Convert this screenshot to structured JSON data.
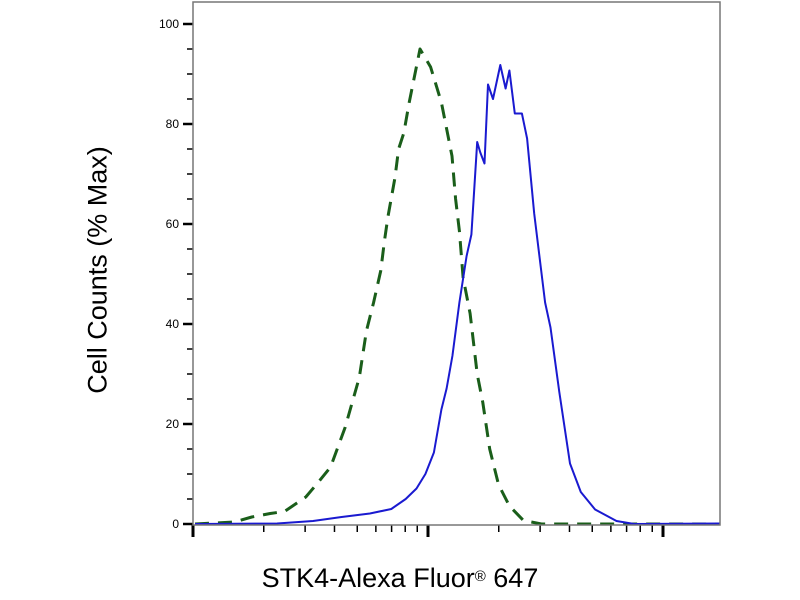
{
  "chart_data": {
    "type": "line",
    "title": "",
    "xlabel": "STK4-Alexa Fluor",
    "xlabel_mark": "®",
    "xlabel_suffix": " 647",
    "ylabel": "Cell Counts (% Max)",
    "x_scale": "log",
    "xlim": [
      1,
      175
    ],
    "ylim": [
      0,
      100
    ],
    "yticks": [
      0,
      20,
      40,
      60,
      80,
      100
    ],
    "x_tick_labels_shown": false,
    "grid": false,
    "legend": "none",
    "series": [
      {
        "style": "dashed",
        "color": "#1a5e1a",
        "x": [
          1.02,
          1.5,
          1.78,
          2.13,
          2.45,
          3.02,
          3.35,
          3.85,
          4.44,
          5.1,
          5.47,
          5.87,
          6.3,
          6.52,
          6.75,
          7.24,
          7.5,
          7.89,
          8.32,
          9.25,
          10.26,
          11.4,
          12.65,
          13.1,
          13.6,
          14.1,
          15.1,
          16.2,
          17.1,
          18.3,
          19.95,
          22.2,
          25.5,
          30.4,
          53.2,
          175
        ],
        "y": [
          0,
          0.4,
          1.4,
          2.1,
          2.5,
          5.4,
          7.9,
          11.4,
          19.3,
          29.3,
          38.6,
          44.3,
          50.7,
          56.4,
          61.4,
          69.3,
          75,
          78.2,
          84.3,
          95,
          91.4,
          84.3,
          73.6,
          65,
          58.6,
          49.3,
          42.1,
          30,
          24.3,
          15,
          7.9,
          3.6,
          0.7,
          0,
          0,
          0
        ]
      },
      {
        "style": "solid",
        "color": "#1a1ad0",
        "x": [
          1.02,
          2.28,
          3.24,
          4.29,
          5.66,
          6.98,
          8.04,
          8.93,
          9.75,
          10.6,
          11.4,
          12.0,
          12.7,
          13.6,
          14.6,
          15.3,
          16.2,
          16.7,
          17.4,
          18.0,
          18.9,
          20.3,
          21.4,
          22.2,
          23.4,
          25.1,
          26.4,
          28.3,
          31.5,
          33.2,
          36.2,
          40.2,
          44.7,
          51.4,
          63.4,
          75.5,
          175
        ],
        "y": [
          0,
          0.1,
          0.6,
          1.4,
          2.1,
          3,
          5,
          7.1,
          10,
          14.3,
          22.9,
          27.1,
          33.6,
          44.3,
          53.6,
          57.9,
          76.4,
          74.3,
          72.1,
          87.9,
          85,
          91.8,
          87.1,
          90.7,
          82.1,
          82.1,
          77.1,
          62.1,
          44.3,
          39.3,
          26.4,
          12.1,
          6.4,
          2.9,
          0.6,
          0,
          0.1
        ]
      }
    ]
  }
}
